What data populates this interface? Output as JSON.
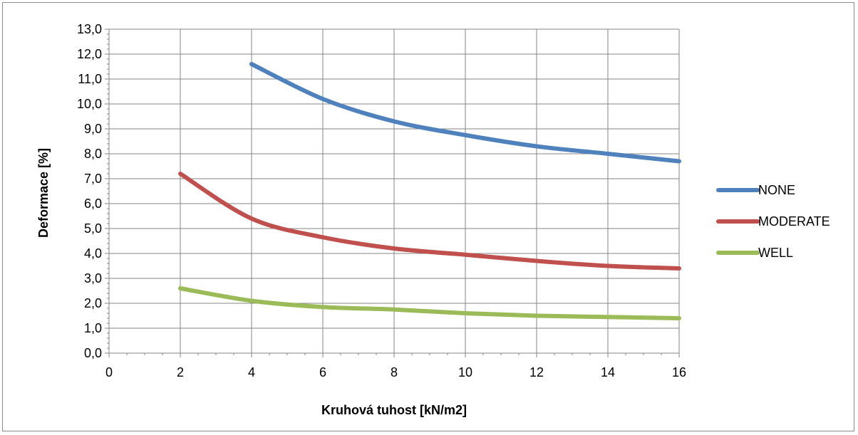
{
  "chart_data": {
    "type": "line",
    "title": "",
    "xlabel": "Kruhová tuhost [kN/m2]",
    "ylabel": "Deformace [%]",
    "xlim": [
      0,
      16
    ],
    "ylim": [
      0,
      13
    ],
    "x_ticks": [
      "0",
      "2",
      "4",
      "6",
      "8",
      "10",
      "12",
      "14",
      "16"
    ],
    "y_ticks": [
      "0,0",
      "1,0",
      "2,0",
      "3,0",
      "4,0",
      "5,0",
      "6,0",
      "7,0",
      "8,0",
      "9,0",
      "10,0",
      "11,0",
      "12,0",
      "13,0"
    ],
    "grid": true,
    "legend_position": "right",
    "series": [
      {
        "name": "NONE",
        "color": "#4f81bd",
        "x": [
          4,
          6,
          8,
          10,
          12,
          14,
          16
        ],
        "y": [
          11.6,
          10.2,
          9.3,
          8.75,
          8.3,
          8.0,
          7.7
        ]
      },
      {
        "name": "MODERATE",
        "color": "#c0504d",
        "x": [
          2,
          4,
          6,
          8,
          10,
          12,
          14,
          16
        ],
        "y": [
          7.2,
          5.4,
          4.65,
          4.2,
          3.95,
          3.7,
          3.5,
          3.4
        ]
      },
      {
        "name": "WELL",
        "color": "#9bbb59",
        "x": [
          2,
          4,
          6,
          8,
          10,
          12,
          14,
          16
        ],
        "y": [
          2.6,
          2.1,
          1.85,
          1.75,
          1.6,
          1.5,
          1.45,
          1.4
        ]
      }
    ]
  }
}
